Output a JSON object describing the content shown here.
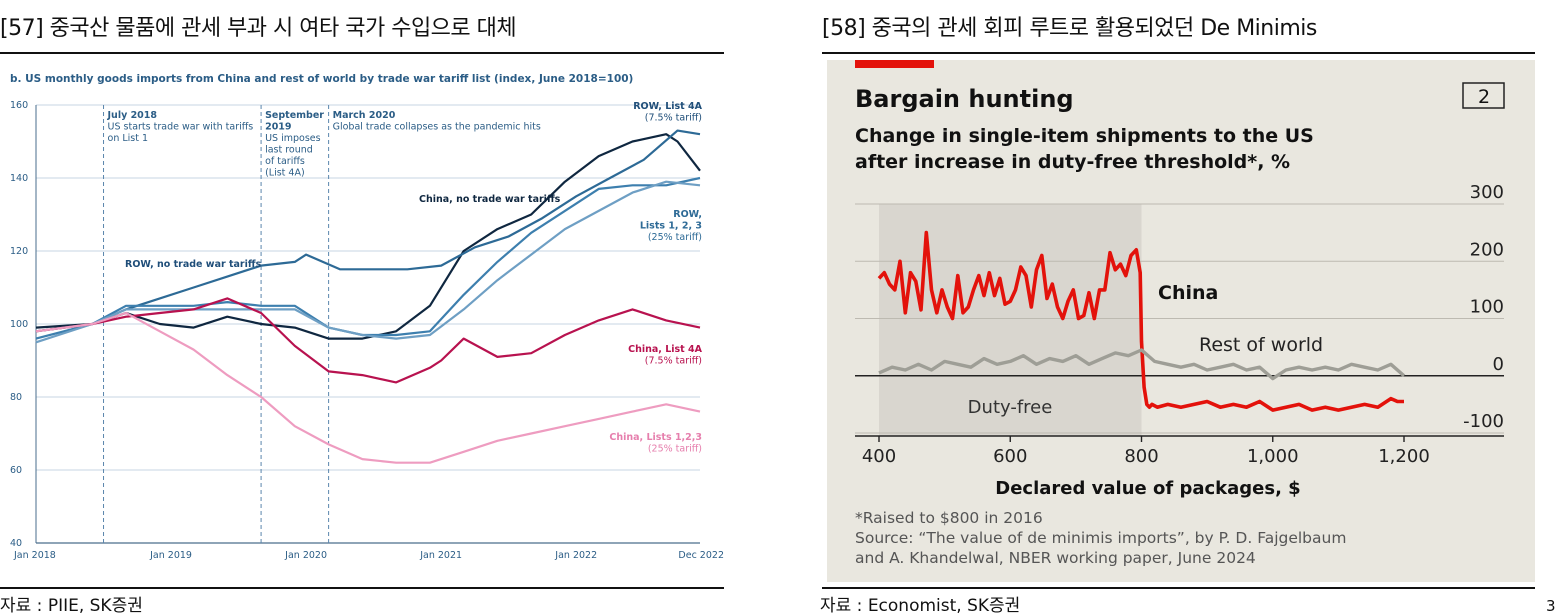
{
  "left_panel": {
    "heading": "[57] 중국산 물품에 관세 부과 시 여타 국가 수입으로 대체",
    "source": "자료 : PIIE, SK증권"
  },
  "right_panel": {
    "heading": "[58] 중국의 관세 회피 루트로 활용되었던 De Minimis",
    "source": "자료 : Economist, SK증권"
  },
  "page_number": "3",
  "chart_data": [
    {
      "type": "line",
      "title": "b. US monthly goods imports from China and rest of world by trade war tariff list (index, June 2018=100)",
      "ylim": [
        40,
        160
      ],
      "yticks": [
        40,
        60,
        80,
        100,
        120,
        140,
        160
      ],
      "xlim": [
        "2018-01",
        "2022-12"
      ],
      "xticks": [
        "Jan 2018",
        "Jan 2019",
        "Jan 2020",
        "Jan 2021",
        "Jan 2022",
        "Dec 2022"
      ],
      "grid": true,
      "events": [
        {
          "date": "2018-07",
          "label": [
            "July 2018",
            "US starts trade war with tariffs",
            "on List 1"
          ]
        },
        {
          "date": "2019-09",
          "label": [
            "September",
            "2019",
            "US imposes",
            "last round",
            "of tariffs",
            "(List 4A)"
          ]
        },
        {
          "date": "2020-03",
          "label": [
            "March 2020",
            "Global trade collapses as the pandemic hits"
          ]
        }
      ],
      "series": [
        {
          "name": "China, no trade war tariffs",
          "label": [
            "China, no trade war tariffs"
          ],
          "color": "#0f2740",
          "x": [
            "2018-01",
            "2018-06",
            "2018-09",
            "2018-12",
            "2019-03",
            "2019-06",
            "2019-09",
            "2019-12",
            "2020-03",
            "2020-06",
            "2020-09",
            "2020-12",
            "2021-03",
            "2021-06",
            "2021-09",
            "2021-12",
            "2022-03",
            "2022-06",
            "2022-09",
            "2022-10",
            "2022-12"
          ],
          "values": [
            99,
            100,
            103,
            100,
            99,
            102,
            100,
            99,
            96,
            96,
            98,
            105,
            120,
            126,
            130,
            139,
            146,
            150,
            152,
            150,
            142
          ]
        },
        {
          "name": "ROW, no trade war tariffs",
          "label": [
            "ROW, no trade war tariffs"
          ],
          "color": "#2d6a96",
          "x": [
            "2018-01",
            "2018-06",
            "2018-09",
            "2018-12",
            "2019-03",
            "2019-06",
            "2019-09",
            "2019-12",
            "2020-01",
            "2020-04",
            "2020-07",
            "2020-10",
            "2021-01",
            "2021-04",
            "2021-07",
            "2021-10",
            "2022-01",
            "2022-04",
            "2022-07",
            "2022-10",
            "2022-12"
          ],
          "values": [
            98,
            100,
            104,
            107,
            110,
            113,
            116,
            117,
            119,
            115,
            115,
            115,
            116,
            121,
            124,
            129,
            135,
            140,
            145,
            153,
            152
          ]
        },
        {
          "name": "ROW, List 4A",
          "label": [
            "ROW, List 4A",
            "(7.5% tariff)"
          ],
          "color": "#3d7fae",
          "x": [
            "2018-01",
            "2018-06",
            "2018-09",
            "2018-12",
            "2019-03",
            "2019-06",
            "2019-09",
            "2019-12",
            "2020-03",
            "2020-06",
            "2020-09",
            "2020-12",
            "2021-03",
            "2021-06",
            "2021-09",
            "2021-12",
            "2022-03",
            "2022-06",
            "2022-09",
            "2022-12"
          ],
          "values": [
            96,
            100,
            105,
            105,
            105,
            106,
            105,
            105,
            99,
            97,
            97,
            98,
            108,
            117,
            125,
            131,
            137,
            138,
            138,
            140
          ]
        },
        {
          "name": "ROW, Lists 1, 2, 3",
          "label": [
            "ROW,",
            "Lists 1, 2, 3",
            "(25% tariff)"
          ],
          "color": "#6e9fc4",
          "x": [
            "2018-01",
            "2018-06",
            "2018-09",
            "2018-12",
            "2019-03",
            "2019-06",
            "2019-09",
            "2019-12",
            "2020-03",
            "2020-06",
            "2020-09",
            "2020-12",
            "2021-03",
            "2021-06",
            "2021-09",
            "2021-12",
            "2022-03",
            "2022-06",
            "2022-09",
            "2022-12"
          ],
          "values": [
            95,
            100,
            104,
            104,
            104,
            104,
            104,
            104,
            99,
            97,
            96,
            97,
            104,
            112,
            119,
            126,
            131,
            136,
            139,
            138
          ]
        },
        {
          "name": "China, List 4A",
          "label": [
            "China, List 4A",
            "(7.5% tariff)"
          ],
          "color": "#b8124f",
          "x": [
            "2018-01",
            "2018-06",
            "2018-09",
            "2018-12",
            "2019-03",
            "2019-06",
            "2019-09",
            "2019-12",
            "2020-03",
            "2020-06",
            "2020-09",
            "2020-12",
            "2021-01",
            "2021-03",
            "2021-06",
            "2021-09",
            "2021-12",
            "2022-03",
            "2022-06",
            "2022-09",
            "2022-12"
          ],
          "values": [
            98,
            100,
            102,
            103,
            104,
            107,
            103,
            94,
            87,
            86,
            84,
            88,
            90,
            96,
            91,
            92,
            97,
            101,
            104,
            101,
            99
          ]
        },
        {
          "name": "China, Lists 1,2,3",
          "label": [
            "China, Lists 1,2,3",
            "(25% tariff)"
          ],
          "color": "#ee9cc0",
          "x": [
            "2018-01",
            "2018-06",
            "2018-09",
            "2018-12",
            "2019-03",
            "2019-06",
            "2019-09",
            "2019-12",
            "2020-03",
            "2020-06",
            "2020-09",
            "2020-12",
            "2021-03",
            "2021-06",
            "2021-09",
            "2021-12",
            "2022-03",
            "2022-06",
            "2022-09",
            "2022-12"
          ],
          "values": [
            98,
            100,
            103,
            98,
            93,
            86,
            80,
            72,
            67,
            63,
            62,
            62,
            65,
            68,
            70,
            72,
            74,
            76,
            78,
            76
          ]
        }
      ]
    },
    {
      "type": "line",
      "badge": "2",
      "title": "Bargain hunting",
      "subtitle": [
        "Change in single-item shipments to the US",
        "after increase in duty-free threshold*, %"
      ],
      "xlabel": "Declared value of packages, $",
      "xlim": [
        400,
        1200
      ],
      "xticks": [
        400,
        600,
        800,
        "1,000",
        "1,200"
      ],
      "ylim": [
        -100,
        300
      ],
      "yticks": [
        300,
        200,
        100,
        0,
        -100
      ],
      "grid": true,
      "shaded_region": {
        "x": [
          400,
          800
        ],
        "label": "Duty-free",
        "color": "#d9d6cf"
      },
      "notes": [
        "*Raised to $800 in 2016",
        "Source: “The value of de minimis imports”, by P. D. Fajgelbaum",
        "and A. Khandelwal, NBER working paper, June 2024"
      ],
      "series": [
        {
          "name": "China",
          "color": "#e3120b",
          "x": [
            400,
            408,
            416,
            424,
            432,
            440,
            448,
            456,
            464,
            472,
            480,
            488,
            496,
            504,
            512,
            520,
            528,
            536,
            544,
            552,
            560,
            568,
            576,
            584,
            592,
            600,
            608,
            616,
            624,
            632,
            640,
            648,
            656,
            664,
            672,
            680,
            688,
            696,
            704,
            712,
            720,
            728,
            736,
            744,
            752,
            760,
            768,
            776,
            784,
            792,
            798,
            800,
            804,
            808,
            812,
            816,
            824,
            840,
            860,
            880,
            900,
            920,
            940,
            960,
            980,
            1000,
            1020,
            1040,
            1060,
            1080,
            1100,
            1120,
            1140,
            1160,
            1180,
            1190,
            1200
          ],
          "values": [
            170,
            180,
            160,
            150,
            200,
            110,
            180,
            165,
            115,
            250,
            150,
            110,
            150,
            120,
            100,
            175,
            110,
            120,
            150,
            175,
            140,
            180,
            140,
            170,
            125,
            130,
            150,
            190,
            175,
            120,
            185,
            210,
            135,
            160,
            120,
            100,
            130,
            150,
            100,
            105,
            145,
            100,
            150,
            150,
            215,
            185,
            195,
            175,
            210,
            220,
            180,
            60,
            -20,
            -50,
            -55,
            -50,
            -55,
            -50,
            -55,
            -50,
            -45,
            -55,
            -50,
            -55,
            -45,
            -60,
            -55,
            -50,
            -60,
            -55,
            -60,
            -55,
            -50,
            -55,
            -40,
            -45,
            -45
          ]
        },
        {
          "name": "Rest of world",
          "color": "#9e9e96",
          "x": [
            400,
            420,
            440,
            460,
            480,
            500,
            520,
            540,
            560,
            580,
            600,
            620,
            640,
            660,
            680,
            700,
            720,
            740,
            760,
            780,
            800,
            820,
            840,
            860,
            880,
            900,
            920,
            940,
            960,
            980,
            1000,
            1020,
            1040,
            1060,
            1080,
            1100,
            1120,
            1140,
            1160,
            1180,
            1200
          ],
          "values": [
            5,
            15,
            10,
            20,
            10,
            25,
            20,
            15,
            30,
            20,
            25,
            35,
            20,
            30,
            25,
            35,
            20,
            30,
            40,
            35,
            45,
            25,
            20,
            15,
            20,
            10,
            15,
            20,
            10,
            15,
            -5,
            10,
            15,
            10,
            15,
            10,
            20,
            15,
            10,
            20,
            0
          ]
        }
      ]
    }
  ]
}
